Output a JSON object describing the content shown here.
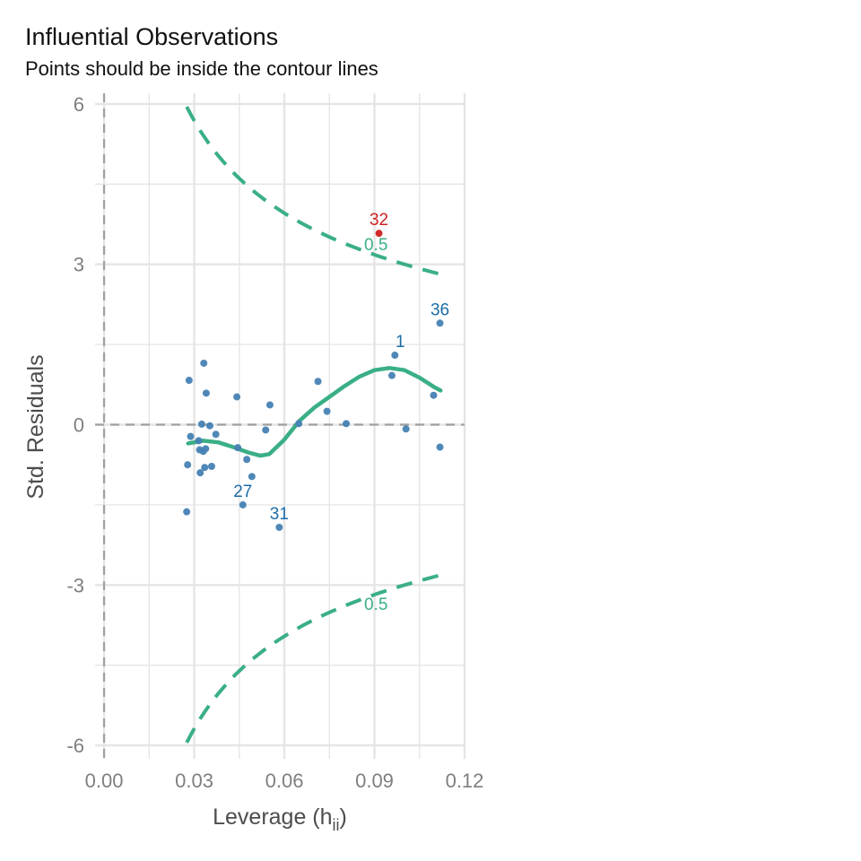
{
  "chart_data": {
    "type": "scatter",
    "title": "Influential Observations",
    "subtitle": "Points should be inside the contour lines",
    "xlabel": "Leverage (h",
    "xlabel_sub": "ii",
    "xlabel_close": ")",
    "ylabel": "Std. Residuals",
    "xlim": [
      -0.003,
      0.12
    ],
    "ylim": [
      -6.25,
      6.2
    ],
    "x_ticks": [
      {
        "value": 0.0,
        "label": "0.00"
      },
      {
        "value": 0.03,
        "label": "0.03"
      },
      {
        "value": 0.06,
        "label": "0.06"
      },
      {
        "value": 0.09,
        "label": "0.09"
      },
      {
        "value": 0.12,
        "label": "0.12"
      }
    ],
    "y_ticks": [
      {
        "value": 6,
        "label": "6"
      },
      {
        "value": 3,
        "label": "3"
      },
      {
        "value": 0,
        "label": "0"
      },
      {
        "value": -3,
        "label": "-3"
      },
      {
        "value": -6,
        "label": "-6"
      }
    ],
    "x_minor": [
      0.015,
      0.045,
      0.075,
      0.105
    ],
    "y_minor": [
      4.5,
      1.5,
      -1.5,
      -4.5
    ],
    "grid": true,
    "reference_lines": {
      "x": 0,
      "y": 0
    },
    "colors": {
      "point": "#4682b4",
      "influential": "#cd201f",
      "smooth": "#3aaf85",
      "contour": "#3aaf85",
      "label": "#1b6ca8",
      "reference": "#a0a0a0",
      "grid": "#e5e5e5",
      "tick_label": "#7f7f7f",
      "axis_title": "#4d4d4d"
    },
    "points": [
      {
        "x": 0.0283,
        "y": 0.83
      },
      {
        "x": 0.0288,
        "y": -0.22
      },
      {
        "x": 0.0278,
        "y": -0.75
      },
      {
        "x": 0.0275,
        "y": -1.63
      },
      {
        "x": 0.0315,
        "y": -0.3
      },
      {
        "x": 0.0318,
        "y": -0.47
      },
      {
        "x": 0.032,
        "y": -0.9
      },
      {
        "x": 0.0325,
        "y": 0.01
      },
      {
        "x": 0.033,
        "y": -0.5
      },
      {
        "x": 0.0332,
        "y": 1.15
      },
      {
        "x": 0.0335,
        "y": -0.8
      },
      {
        "x": 0.0338,
        "y": -0.45
      },
      {
        "x": 0.034,
        "y": 0.59
      },
      {
        "x": 0.0352,
        "y": -0.02
      },
      {
        "x": 0.0358,
        "y": -0.78
      },
      {
        "x": 0.0372,
        "y": -0.18
      },
      {
        "x": 0.0442,
        "y": 0.52
      },
      {
        "x": 0.0445,
        "y": -0.43
      },
      {
        "x": 0.0475,
        "y": -0.65
      },
      {
        "x": 0.0492,
        "y": -0.97
      },
      {
        "x": 0.0538,
        "y": -0.1
      },
      {
        "x": 0.0552,
        "y": 0.37
      },
      {
        "x": 0.0648,
        "y": 0.02
      },
      {
        "x": 0.0712,
        "y": 0.81
      },
      {
        "x": 0.0742,
        "y": 0.25
      },
      {
        "x": 0.0806,
        "y": 0.02
      },
      {
        "x": 0.0958,
        "y": 0.92
      },
      {
        "x": 0.1005,
        "y": -0.08
      },
      {
        "x": 0.1097,
        "y": 0.55
      },
      {
        "x": 0.1118,
        "y": -0.42
      },
      {
        "x": 0.0462,
        "y": -1.5,
        "label": "27"
      },
      {
        "x": 0.0583,
        "y": -1.92,
        "label": "31"
      },
      {
        "x": 0.0968,
        "y": 1.3,
        "label": "1"
      },
      {
        "x": 0.1118,
        "y": 1.9,
        "label": "36"
      },
      {
        "x": 0.0915,
        "y": 3.58,
        "label": "32",
        "influential": true
      }
    ],
    "smooth": [
      [
        0.028,
        -0.35
      ],
      [
        0.033,
        -0.3
      ],
      [
        0.038,
        -0.33
      ],
      [
        0.043,
        -0.42
      ],
      [
        0.048,
        -0.52
      ],
      [
        0.052,
        -0.58
      ],
      [
        0.055,
        -0.55
      ],
      [
        0.06,
        -0.28
      ],
      [
        0.065,
        0.07
      ],
      [
        0.07,
        0.32
      ],
      [
        0.075,
        0.52
      ],
      [
        0.08,
        0.72
      ],
      [
        0.085,
        0.9
      ],
      [
        0.09,
        1.02
      ],
      [
        0.095,
        1.06
      ],
      [
        0.1,
        1.02
      ],
      [
        0.105,
        0.88
      ],
      [
        0.11,
        0.7
      ],
      [
        0.112,
        0.64
      ]
    ],
    "contour_level": "0.5",
    "contour_label_x": 0.0905,
    "contour_label_y": [
      3.38,
      -3.35
    ]
  }
}
